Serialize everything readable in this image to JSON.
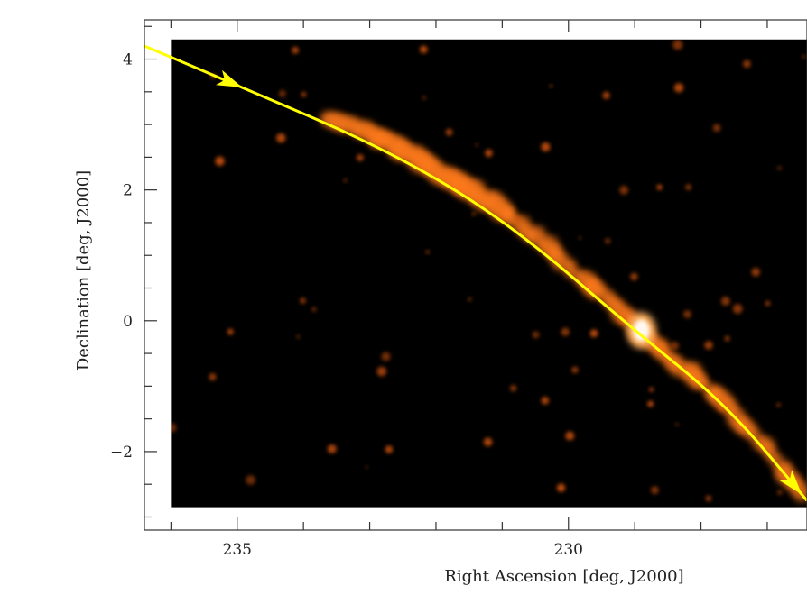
{
  "chart_data": {
    "type": "heatmap",
    "xlabel": "Right Ascension [deg, J2000]",
    "ylabel": "Declination [deg, J2000]",
    "xlim": [
      236.4,
      226.4
    ],
    "ylim": [
      -3.2,
      4.6
    ],
    "x_ticks": [
      235,
      230
    ],
    "y_ticks": [
      4,
      2,
      0,
      -2
    ],
    "x_tick_labels": [
      "235",
      "230"
    ],
    "y_tick_labels": [
      "4",
      "2",
      "0",
      "−2"
    ],
    "x_minor_step": 1,
    "y_minor_step": 0.5,
    "image_extent": {
      "ra": [
        236.0,
        226.4
      ],
      "dec": [
        4.3,
        -2.85
      ]
    },
    "colormap": "black-orange-white heat",
    "background_color": "#000000",
    "stream_color": "#ff7a1a",
    "arrow_color": "#ffff00",
    "bright_source": {
      "ra": 228.9,
      "dec": -0.15
    },
    "orbit_arrow": {
      "ra": [
        236.4,
        235.0,
        232.7,
        230.9,
        229.0,
        227.6,
        226.4
      ],
      "dec": [
        4.2,
        3.6,
        2.6,
        1.5,
        -0.15,
        -1.3,
        -2.75
      ],
      "arrowheads_at_ra": [
        235.1,
        226.6
      ]
    }
  }
}
